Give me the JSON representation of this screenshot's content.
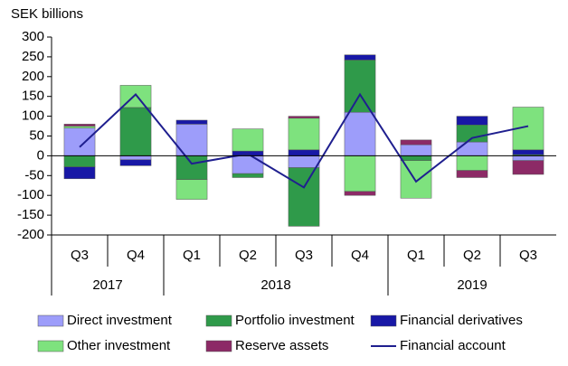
{
  "chart_data": {
    "type": "stacked-bar-line",
    "y_label": "SEK billions",
    "categories": [
      "Q3",
      "Q4",
      "Q1",
      "Q2",
      "Q3",
      "Q4",
      "Q1",
      "Q2",
      "Q3"
    ],
    "groups": [
      {
        "label": "2017",
        "count": 2
      },
      {
        "label": "2018",
        "count": 4
      },
      {
        "label": "2019",
        "count": 3
      }
    ],
    "ylim": [
      -200,
      300
    ],
    "yticks": [
      -200,
      -150,
      -100,
      -50,
      0,
      50,
      100,
      150,
      200,
      250,
      300
    ],
    "series": [
      {
        "name": "Direct investment",
        "color": "#9d9dfa",
        "values": [
          70,
          -10,
          80,
          -45,
          -30,
          110,
          28,
          35,
          -12
        ]
      },
      {
        "name": "Portfolio investment",
        "color": "#2f9a4a",
        "values": [
          -28,
          122,
          -60,
          -10,
          -148,
          132,
          -12,
          43,
          3
        ]
      },
      {
        "name": "Financial derivatives",
        "color": "#1818a6",
        "values": [
          -30,
          -15,
          10,
          12,
          15,
          13,
          0,
          22,
          12
        ]
      },
      {
        "name": "Other investment",
        "color": "#7ee27e",
        "values": [
          5,
          56,
          -50,
          56,
          80,
          -90,
          -95,
          -37,
          108
        ]
      },
      {
        "name": "Reserve assets",
        "color": "#8c2a66",
        "values": [
          5,
          0,
          0,
          0,
          5,
          -10,
          12,
          -18,
          -35
        ]
      },
      {
        "name": "Financial account",
        "color": "#1f1f8f",
        "type": "line",
        "values": [
          22,
          155,
          -20,
          5,
          -80,
          155,
          -65,
          45,
          75
        ]
      }
    ]
  }
}
